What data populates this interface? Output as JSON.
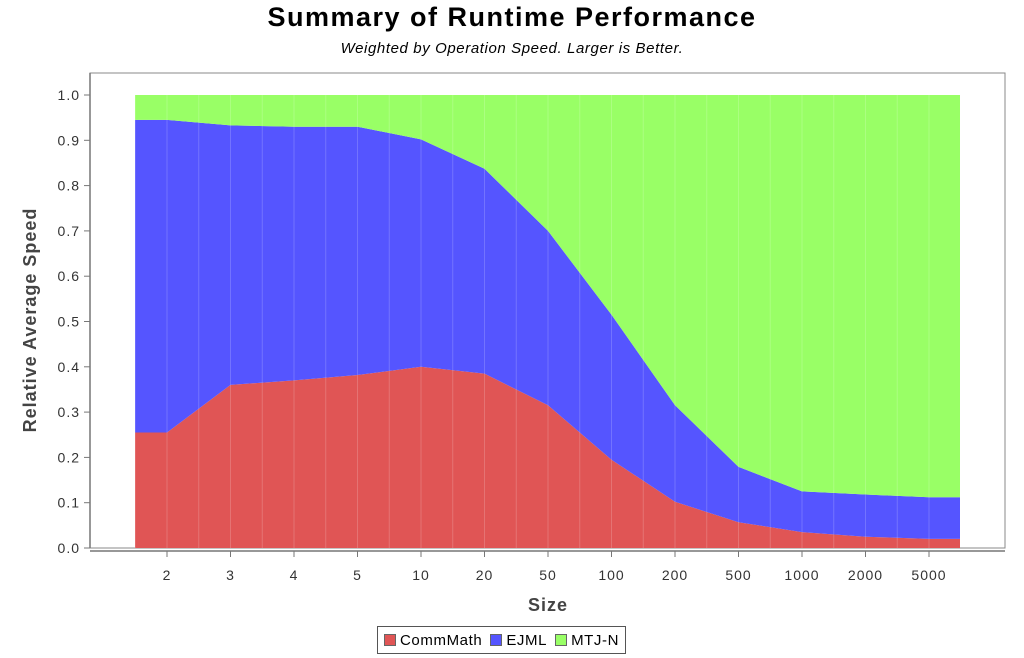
{
  "chart_data": {
    "type": "area",
    "stacked": true,
    "title": "Summary of Runtime Performance",
    "subtitle": "Weighted by Operation Speed. Larger is Better.",
    "xlabel": "Size",
    "ylabel": "Relative Average Speed",
    "categories": [
      "2",
      "3",
      "4",
      "5",
      "10",
      "20",
      "50",
      "100",
      "200",
      "500",
      "1000",
      "2000",
      "5000"
    ],
    "ylim": [
      0.0,
      1.0
    ],
    "yticks": [
      "0.0",
      "0.1",
      "0.2",
      "0.3",
      "0.4",
      "0.5",
      "0.6",
      "0.7",
      "0.8",
      "0.9",
      "1.0"
    ],
    "grid": true,
    "legend_position": "bottom",
    "series": [
      {
        "name": "CommMath",
        "color": "#e05555",
        "values": [
          0.255,
          0.36,
          0.37,
          0.382,
          0.4,
          0.385,
          0.315,
          0.195,
          0.102,
          0.057,
          0.035,
          0.025,
          0.02
        ]
      },
      {
        "name": "EJML",
        "color": "#5555ff",
        "values": [
          0.69,
          0.573,
          0.56,
          0.548,
          0.502,
          0.452,
          0.385,
          0.32,
          0.213,
          0.122,
          0.09,
          0.093,
          0.092
        ]
      },
      {
        "name": "MTJ-N",
        "color": "#99ff66",
        "values": [
          0.055,
          0.067,
          0.07,
          0.07,
          0.098,
          0.163,
          0.3,
          0.485,
          0.685,
          0.821,
          0.875,
          0.882,
          0.888
        ]
      }
    ]
  }
}
